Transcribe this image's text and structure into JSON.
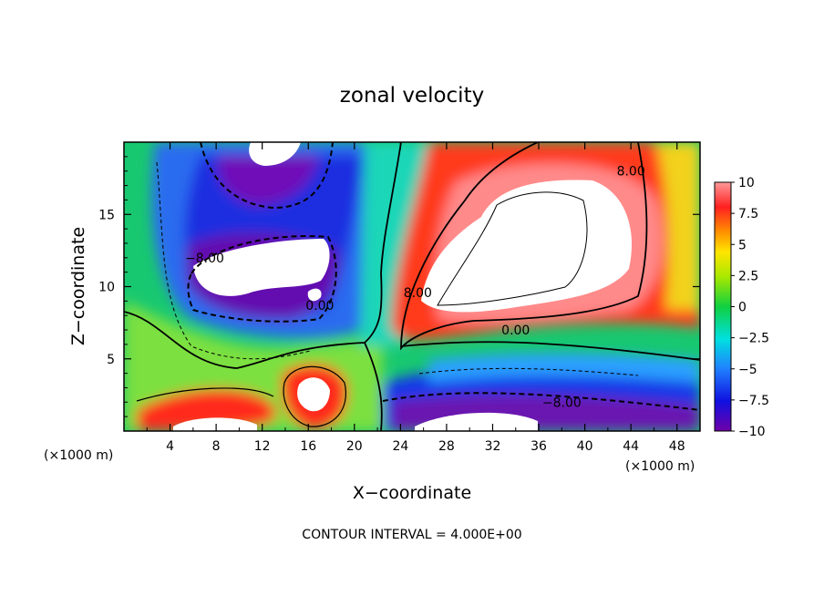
{
  "chart_data": {
    "type": "heatmap",
    "title": "zonal velocity",
    "xlabel": "X−coordinate",
    "ylabel": "Z−coordinate",
    "x_unit_left": "(×1000 m)",
    "x_unit_right": "(×1000 m)",
    "footer": "CONTOUR INTERVAL = 4.000E+00",
    "xlim": [
      0,
      50
    ],
    "ylim": [
      0,
      20
    ],
    "x_ticks": [
      {
        "value": 4,
        "label": "4"
      },
      {
        "value": 8,
        "label": "8"
      },
      {
        "value": 12,
        "label": "12"
      },
      {
        "value": 16,
        "label": "16"
      },
      {
        "value": 20,
        "label": "20"
      },
      {
        "value": 24,
        "label": "24"
      },
      {
        "value": 28,
        "label": "28"
      },
      {
        "value": 32,
        "label": "32"
      },
      {
        "value": 36,
        "label": "36"
      },
      {
        "value": 40,
        "label": "40"
      },
      {
        "value": 44,
        "label": "44"
      },
      {
        "value": 48,
        "label": "48"
      }
    ],
    "y_ticks": [
      {
        "value": 5,
        "label": "5"
      },
      {
        "value": 10,
        "label": "10"
      },
      {
        "value": 15,
        "label": "15"
      }
    ],
    "colorbar": {
      "min": -10,
      "max": 10,
      "labels": [
        {
          "value": 10,
          "label": "10"
        },
        {
          "value": 7.5,
          "label": "7.5"
        },
        {
          "value": 5,
          "label": "5"
        },
        {
          "value": 2.5,
          "label": "2.5"
        },
        {
          "value": 0,
          "label": "0"
        },
        {
          "value": -2.5,
          "label": "−2.5"
        },
        {
          "value": -5,
          "label": "−5"
        },
        {
          "value": -7.5,
          "label": "−7.5"
        },
        {
          "value": -10,
          "label": "−10"
        }
      ]
    },
    "contour_labels": [
      {
        "text": "8.00",
        "x": 44,
        "y": 18
      },
      {
        "text": "−8.00",
        "x": 7,
        "y": 12
      },
      {
        "text": "0.00",
        "x": 17,
        "y": 8.7
      },
      {
        "text": "8.00",
        "x": 25.5,
        "y": 9.6
      },
      {
        "text": "0.00",
        "x": 34,
        "y": 7
      },
      {
        "text": "−8.00",
        "x": 38,
        "y": 2
      }
    ]
  }
}
